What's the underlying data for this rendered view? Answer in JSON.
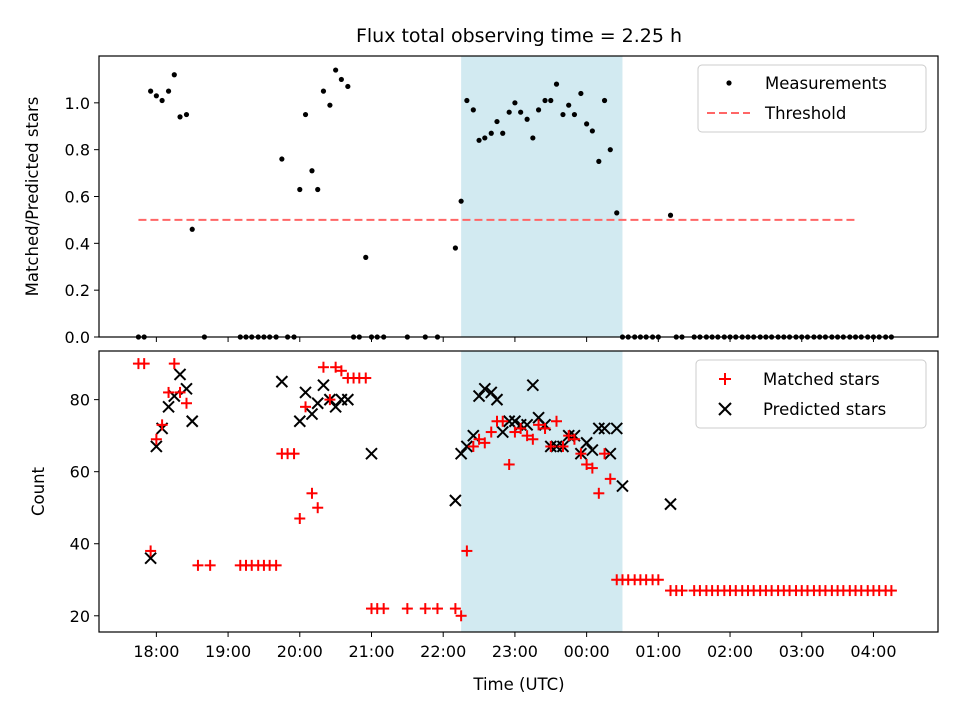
{
  "chart_data": {
    "title": "Flux total observing time = 2.25 h",
    "x_unit": "hours since 17:00 UTC",
    "xlabel": "Time (UTC)",
    "xlim": [
      0.2,
      11.9
    ],
    "xticks": [
      1,
      2,
      3,
      4,
      5,
      6,
      7,
      8,
      9,
      10,
      11
    ],
    "xticklabels": [
      "18:00",
      "19:00",
      "20:00",
      "21:00",
      "22:00",
      "23:00",
      "00:00",
      "01:00",
      "02:00",
      "03:00",
      "04:00"
    ],
    "highlight": {
      "start": 5.25,
      "end": 7.5,
      "color": "#add8e6"
    },
    "panels": [
      {
        "type": "scatter",
        "ylabel": "Matched/Predicted stars",
        "ylim": [
          0,
          1.2
        ],
        "yticks": [
          0,
          0.2,
          0.4,
          0.6,
          0.8,
          1.0
        ],
        "yticklabels": [
          "0.0",
          "0.2",
          "0.4",
          "0.6",
          "0.8",
          "1.0"
        ],
        "legend_position": "top-right",
        "threshold": {
          "name": "Threshold",
          "value": 0.5,
          "x_start": 0.75,
          "x_end": 10.75,
          "color": "#ff6666"
        },
        "series": [
          {
            "name": "Measurements",
            "marker": "dot",
            "color": "#000000",
            "x": [
              0.75,
              0.83,
              0.92,
              1.0,
              1.08,
              1.17,
              1.25,
              1.33,
              1.42,
              1.5,
              1.67,
              2.17,
              2.25,
              2.33,
              2.42,
              2.5,
              2.58,
              2.67,
              2.75,
              2.83,
              2.92,
              3.0,
              3.08,
              3.17,
              3.25,
              3.33,
              3.42,
              3.5,
              3.58,
              3.67,
              3.75,
              3.83,
              3.92,
              4.0,
              4.08,
              4.17,
              4.5,
              4.75,
              4.92,
              5.17,
              5.25,
              5.33,
              5.42,
              5.5,
              5.58,
              5.67,
              5.75,
              5.83,
              5.92,
              6.0,
              6.08,
              6.17,
              6.25,
              6.33,
              6.42,
              6.5,
              6.58,
              6.67,
              6.75,
              6.83,
              6.92,
              7.0,
              7.08,
              7.17,
              7.25,
              7.33,
              7.42,
              7.5,
              7.58,
              7.67,
              7.75,
              7.83,
              7.92,
              8.0,
              8.17,
              8.25,
              8.33,
              8.5,
              8.58,
              8.67,
              8.75,
              8.83,
              8.92,
              9.0,
              9.08,
              9.17,
              9.25,
              9.33,
              9.42,
              9.5,
              9.58,
              9.67,
              9.75,
              9.83,
              9.92,
              10.0,
              10.08,
              10.17,
              10.25,
              10.33,
              10.42,
              10.5,
              10.58,
              10.67,
              10.75,
              10.83,
              10.92,
              11.0,
              11.08,
              11.17,
              11.25
            ],
            "y": [
              0,
              0,
              1.05,
              1.03,
              1.01,
              1.05,
              1.12,
              0.94,
              0.95,
              0.46,
              0,
              0,
              0,
              0,
              0,
              0,
              0,
              0,
              0.76,
              0,
              0,
              0.63,
              0.95,
              0.71,
              0.63,
              1.05,
              0.99,
              1.14,
              1.1,
              1.07,
              0,
              0,
              0.34,
              0,
              0,
              0,
              0,
              0,
              0,
              0.38,
              0.58,
              1.01,
              0.97,
              0.84,
              0.85,
              0.87,
              0.92,
              0.87,
              0.96,
              1.0,
              0.96,
              0.93,
              0.85,
              0.97,
              1.01,
              1.01,
              1.08,
              0.95,
              0.99,
              0.95,
              1.04,
              0.91,
              0.88,
              0.75,
              1.01,
              0.8,
              0.53,
              0,
              0,
              0,
              0,
              0,
              0,
              0,
              0.52,
              0,
              0,
              0,
              0,
              0,
              0,
              0,
              0,
              0,
              0,
              0,
              0,
              0,
              0,
              0,
              0,
              0,
              0,
              0,
              0,
              0,
              0,
              0,
              0,
              0,
              0,
              0,
              0,
              0,
              0,
              0,
              0,
              0,
              0,
              0,
              0
            ]
          }
        ]
      },
      {
        "type": "scatter",
        "ylabel": "Count",
        "ylim": [
          15.5,
          93.5
        ],
        "yticks": [
          20,
          40,
          60,
          80
        ],
        "yticklabels": [
          "20",
          "40",
          "60",
          "80"
        ],
        "legend_position": "top-right",
        "series": [
          {
            "name": "Matched stars",
            "marker": "plus",
            "color": "#ff0000",
            "x": [
              0.75,
              0.83,
              0.92,
              1.0,
              1.08,
              1.17,
              1.25,
              1.33,
              1.42,
              1.58,
              1.75,
              2.17,
              2.25,
              2.33,
              2.42,
              2.5,
              2.58,
              2.67,
              2.75,
              2.83,
              2.92,
              3.0,
              3.08,
              3.17,
              3.25,
              3.33,
              3.42,
              3.5,
              3.58,
              3.67,
              3.75,
              3.83,
              3.92,
              4.0,
              4.08,
              4.17,
              4.5,
              4.75,
              4.92,
              5.17,
              5.25,
              5.33,
              5.42,
              5.5,
              5.58,
              5.67,
              5.75,
              5.83,
              5.92,
              6.0,
              6.08,
              6.17,
              6.25,
              6.33,
              6.42,
              6.5,
              6.58,
              6.67,
              6.75,
              6.83,
              6.92,
              7.0,
              7.08,
              7.17,
              7.25,
              7.33,
              7.42,
              7.5,
              7.58,
              7.67,
              7.75,
              7.83,
              7.92,
              8.0,
              8.17,
              8.25,
              8.33,
              8.5,
              8.58,
              8.67,
              8.75,
              8.83,
              8.92,
              9.0,
              9.08,
              9.17,
              9.25,
              9.33,
              9.42,
              9.5,
              9.58,
              9.67,
              9.75,
              9.83,
              9.92,
              10.0,
              10.08,
              10.17,
              10.25,
              10.33,
              10.42,
              10.5,
              10.58,
              10.67,
              10.75,
              10.83,
              10.92,
              11.0,
              11.08,
              11.17,
              11.25
            ],
            "y": [
              90,
              90,
              38,
              69,
              73,
              82,
              90,
              82,
              79,
              34,
              34,
              34,
              34,
              34,
              34,
              34,
              34,
              34,
              65,
              65,
              65,
              47,
              78,
              54,
              50,
              89,
              80,
              89,
              88,
              86,
              86,
              86,
              86,
              22,
              22,
              22,
              22,
              22,
              22,
              22,
              20,
              38,
              67,
              69,
              68,
              71,
              74,
              74,
              62,
              71,
              72,
              70,
              69,
              73,
              72,
              67,
              74,
              67,
              70,
              69,
              65,
              62,
              61,
              54,
              65,
              58,
              30,
              30,
              30,
              30,
              30,
              30,
              30,
              30,
              27,
              27,
              27,
              27,
              27,
              27,
              27,
              27,
              27,
              27,
              27,
              27,
              27,
              27,
              27,
              27,
              27,
              27,
              27,
              27,
              27,
              27,
              27,
              27,
              27,
              27,
              27,
              27,
              27,
              27,
              27,
              27,
              27,
              27,
              27,
              27,
              27
            ]
          },
          {
            "name": "Predicted stars",
            "marker": "x",
            "color": "#000000",
            "x": [
              0.92,
              1.0,
              1.08,
              1.17,
              1.25,
              1.33,
              1.42,
              1.5,
              2.75,
              3.0,
              3.08,
              3.17,
              3.25,
              3.33,
              3.42,
              3.5,
              3.58,
              3.67,
              4.0,
              5.17,
              5.25,
              5.33,
              5.42,
              5.5,
              5.58,
              5.67,
              5.75,
              5.83,
              5.92,
              6.0,
              6.08,
              6.17,
              6.25,
              6.33,
              6.42,
              6.5,
              6.58,
              6.67,
              6.75,
              6.83,
              6.92,
              7.0,
              7.08,
              7.17,
              7.25,
              7.33,
              7.42,
              7.5,
              8.17
            ],
            "y": [
              36,
              67,
              72,
              78,
              81,
              87,
              83,
              74,
              85,
              74,
              82,
              76,
              79,
              84,
              80,
              78,
              80,
              80,
              65,
              52,
              65,
              67,
              70,
              81,
              83,
              82,
              80,
              71,
              74,
              74,
              73,
              73,
              84,
              75,
              73,
              67,
              67,
              67,
              70,
              70,
              65,
              68,
              66,
              72,
              72,
              65,
              72,
              56,
              51
            ]
          }
        ]
      }
    ]
  }
}
